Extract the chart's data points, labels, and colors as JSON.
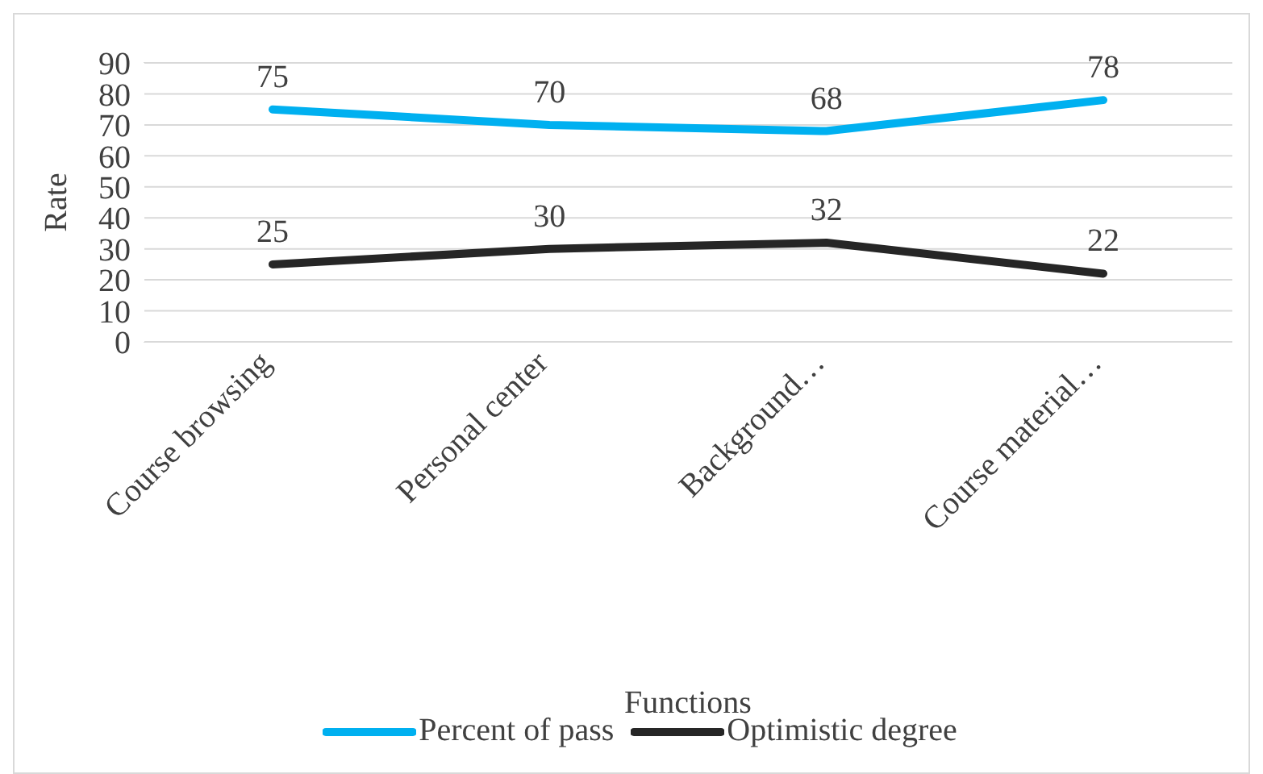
{
  "chart_data": {
    "type": "line",
    "xlabel": "Functions",
    "ylabel": "Rate",
    "categories": [
      "Course browsing",
      "Personal center",
      "Background…",
      "Course material…"
    ],
    "series": [
      {
        "name": "Percent of pass",
        "color": "#00b0f0",
        "values": [
          75,
          70,
          68,
          78
        ]
      },
      {
        "name": "Optimistic degree",
        "color": "#262626",
        "values": [
          25,
          30,
          32,
          22
        ]
      }
    ],
    "ylim": [
      0,
      90
    ],
    "yticks": [
      0,
      10,
      20,
      30,
      40,
      50,
      60,
      70,
      80,
      90
    ],
    "grid": "y",
    "legend": "bottom",
    "data_labels": true,
    "marker": "none",
    "line_style": "solid"
  }
}
